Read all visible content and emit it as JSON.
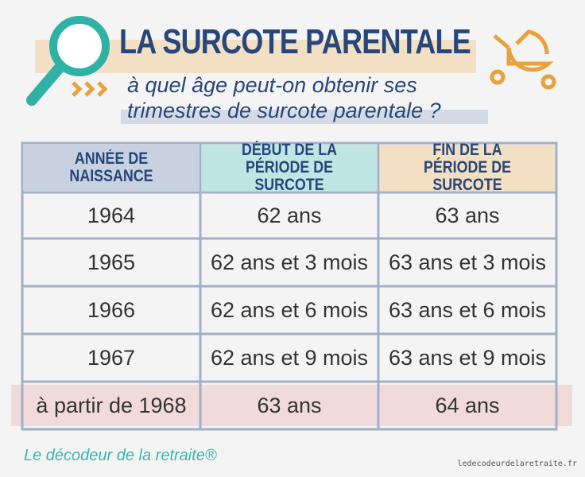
{
  "header": {
    "title": "LA SURCOTE PARENTALE",
    "subtitle": [
      "à quel âge peut-on obtenir ses",
      "trimestres de surcote parentale ?"
    ]
  },
  "table": {
    "columns": [
      "ANNÉE DE NAISSANCE",
      "DÉBUT DE LA PÉRIODE DE SURCOTE",
      "FIN DE LA PÉRIODE DE SURCOTE"
    ],
    "rows": [
      [
        "1964",
        "62 ans",
        "63 ans"
      ],
      [
        "1965",
        "62 ans et 3 mois",
        "63 ans et 3 mois"
      ],
      [
        "1966",
        "62 ans et 6 mois",
        "63 ans et 6 mois"
      ],
      [
        "1967",
        "62 ans et 9 mois",
        "63 ans et 9 mois"
      ],
      [
        "à partir de 1968",
        "63 ans",
        "64 ans"
      ]
    ]
  },
  "footer": {
    "brand": "Le décodeur de la retraite®",
    "url": "ledecodeurdelaretraite.fr"
  }
}
